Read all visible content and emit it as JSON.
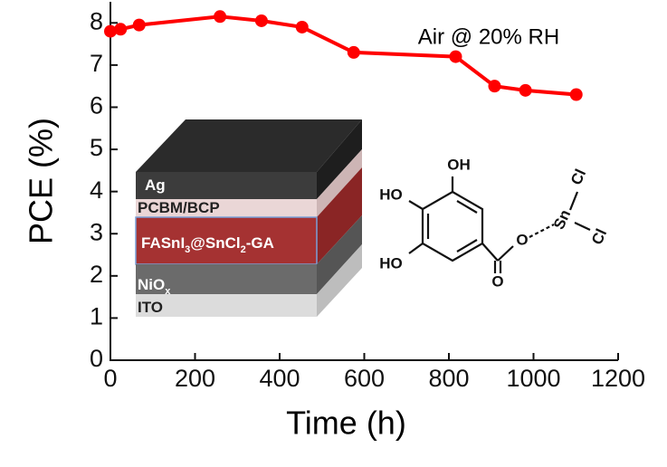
{
  "chart_data": {
    "type": "line",
    "x": [
      0,
      24,
      68,
      259,
      357,
      453,
      575,
      816,
      908,
      981,
      1101
    ],
    "values": [
      7.8,
      7.85,
      7.95,
      8.15,
      8.05,
      7.9,
      7.3,
      7.2,
      6.5,
      6.4,
      6.3
    ],
    "color": "#ff0000",
    "xlim": [
      0,
      1200
    ],
    "xticks": [
      0,
      200,
      400,
      600,
      800,
      1000,
      1200
    ],
    "ylim": [
      0,
      8.5
    ],
    "yticks": [
      0,
      1,
      2,
      3,
      4,
      5,
      6,
      7,
      8
    ],
    "xlabel": "Time (h)",
    "ylabel": "PCE (%)",
    "annotation": "Air @ 20% RH"
  },
  "inset": {
    "layers": [
      [
        "Ag"
      ],
      [
        "PCBM/BCP"
      ],
      [
        "FASnI",
        "3",
        "@SnCl",
        "2",
        "-GA"
      ],
      [
        "NiO",
        "x"
      ],
      [
        "ITO"
      ]
    ],
    "molecule": [
      "OH",
      "HO",
      "HO",
      "O",
      "O",
      "Sn",
      "Cl",
      "Cl"
    ]
  }
}
